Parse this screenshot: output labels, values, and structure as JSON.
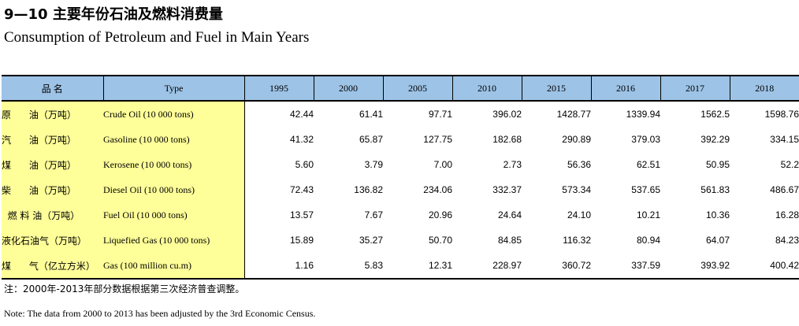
{
  "title": {
    "cn": "9—10  主要年份石油及燃料消费量",
    "en": "Consumption of Petroleum and Fuel in Main Years"
  },
  "table": {
    "headers": {
      "name_cn": "品    名",
      "type": "Type",
      "years": [
        "1995",
        "2000",
        "2005",
        "2010",
        "2015",
        "2016",
        "2017",
        "2018"
      ]
    },
    "rows": [
      {
        "name_cn": "原      油（万吨）",
        "name_en": "Crude Oil  (10 000 tons)",
        "values": [
          "42.44",
          "61.41",
          "97.71",
          "396.02",
          "1428.77",
          "1339.94",
          "1562.5",
          "1598.76"
        ]
      },
      {
        "name_cn": "汽      油（万吨）",
        "name_en": "Gasoline  (10 000 tons)",
        "values": [
          "41.32",
          "65.87",
          "127.75",
          "182.68",
          "290.89",
          "379.03",
          "392.29",
          "334.15"
        ]
      },
      {
        "name_cn": "煤      油（万吨）",
        "name_en": "Kerosene  (10 000 tons)",
        "values": [
          "5.60",
          "3.79",
          "7.00",
          "2.73",
          "56.36",
          "62.51",
          "50.95",
          "52.2"
        ]
      },
      {
        "name_cn": "柴      油（万吨）",
        "name_en": "Diesel Oil  (10 000 tons)",
        "values": [
          "72.43",
          "136.82",
          "234.06",
          "332.37",
          "573.34",
          "537.65",
          "561.83",
          "486.67"
        ]
      },
      {
        "name_cn": "  燃 料 油（万吨）",
        "name_en": "Fuel Oil  (10 000 tons)",
        "values": [
          "13.57",
          "7.67",
          "20.96",
          "24.64",
          "24.10",
          "10.21",
          "10.36",
          "16.28"
        ]
      },
      {
        "name_cn": "液化石油气（万吨）",
        "name_en": "Liquefied Gas  (10 000 tons)",
        "values": [
          "15.89",
          "35.27",
          "50.70",
          "84.85",
          "116.32",
          "80.94",
          "64.07",
          "84.23"
        ]
      },
      {
        "name_cn": "煤      气（亿立方米）",
        "name_en": "Gas  (100 million cu.m)",
        "values": [
          "1.16",
          "5.83",
          "12.31",
          "228.97",
          "360.72",
          "337.59",
          "393.92",
          "400.42"
        ]
      }
    ]
  },
  "notes": {
    "cn": "注：2000年-2013年部分数据根据第三次经济普查调整。",
    "en": "Note: The data from 2000 to 2013 has been adjusted by the 3rd Economic Census."
  }
}
